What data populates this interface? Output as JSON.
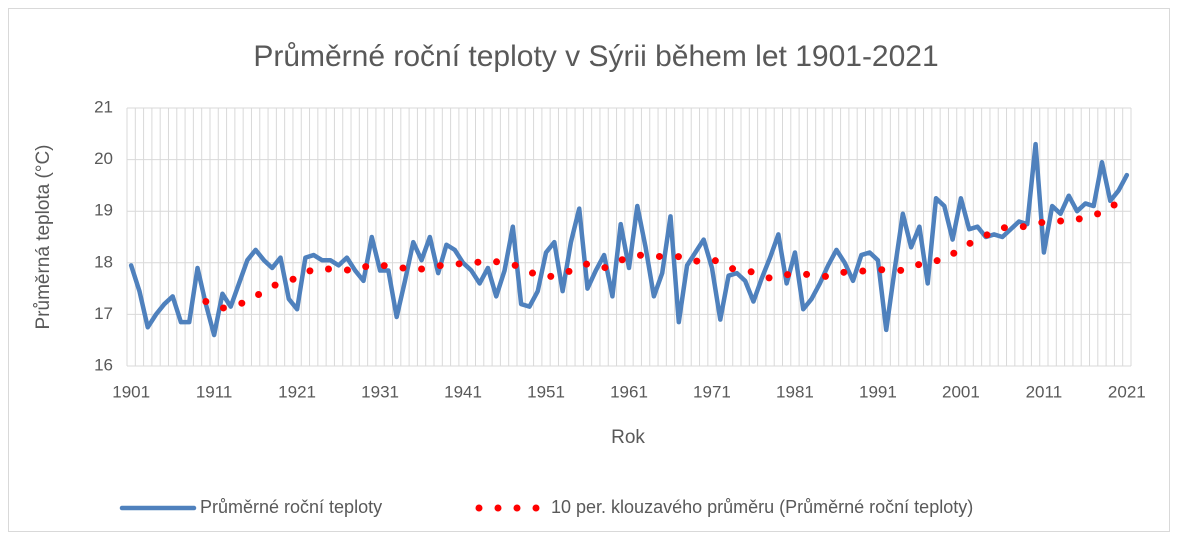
{
  "chart_data": {
    "type": "line",
    "title": "Průměrné roční teploty v Sýrii během let 1901-2021",
    "xlabel": "Rok",
    "ylabel": "Průměrná teplota (°C)",
    "x": [
      1901,
      1902,
      1903,
      1904,
      1905,
      1906,
      1907,
      1908,
      1909,
      1910,
      1911,
      1912,
      1913,
      1914,
      1915,
      1916,
      1917,
      1918,
      1919,
      1920,
      1921,
      1922,
      1923,
      1924,
      1925,
      1926,
      1927,
      1928,
      1929,
      1930,
      1931,
      1932,
      1933,
      1934,
      1935,
      1936,
      1937,
      1938,
      1939,
      1940,
      1941,
      1942,
      1943,
      1944,
      1945,
      1946,
      1947,
      1948,
      1949,
      1950,
      1951,
      1952,
      1953,
      1954,
      1955,
      1956,
      1957,
      1958,
      1959,
      1960,
      1961,
      1962,
      1963,
      1964,
      1965,
      1966,
      1967,
      1968,
      1969,
      1970,
      1971,
      1972,
      1973,
      1974,
      1975,
      1976,
      1977,
      1978,
      1979,
      1980,
      1981,
      1982,
      1983,
      1984,
      1985,
      1986,
      1987,
      1988,
      1989,
      1990,
      1991,
      1992,
      1993,
      1994,
      1995,
      1996,
      1997,
      1998,
      1999,
      2000,
      2001,
      2002,
      2003,
      2004,
      2005,
      2006,
      2007,
      2008,
      2009,
      2010,
      2011,
      2012,
      2013,
      2014,
      2015,
      2016,
      2017,
      2018,
      2019,
      2020,
      2021
    ],
    "series": [
      {
        "name": "Průměrné roční teploty",
        "color": "#4f81bd",
        "style": "solid",
        "values": [
          17.95,
          17.45,
          16.75,
          17.0,
          17.2,
          17.35,
          16.85,
          16.85,
          17.9,
          17.2,
          16.6,
          17.4,
          17.15,
          17.6,
          18.05,
          18.25,
          18.05,
          17.9,
          18.1,
          17.3,
          17.1,
          18.1,
          18.15,
          18.05,
          18.05,
          17.95,
          18.1,
          17.85,
          17.65,
          18.5,
          17.85,
          17.85,
          16.95,
          17.65,
          18.4,
          18.05,
          18.5,
          17.8,
          18.35,
          18.25,
          18.0,
          17.85,
          17.6,
          17.9,
          17.35,
          17.85,
          18.7,
          17.2,
          17.15,
          17.45,
          18.2,
          18.4,
          17.45,
          18.4,
          19.05,
          17.5,
          17.85,
          18.15,
          17.35,
          18.75,
          17.9,
          19.1,
          18.3,
          17.35,
          17.8,
          18.9,
          16.85,
          17.95,
          18.2,
          18.45,
          17.9,
          16.9,
          17.75,
          17.8,
          17.65,
          17.25,
          17.7,
          18.1,
          18.55,
          17.6,
          18.2,
          17.1,
          17.3,
          17.6,
          17.95,
          18.25,
          18.0,
          17.65,
          18.15,
          18.2,
          18.05,
          16.7,
          17.85,
          18.95,
          18.3,
          18.7,
          17.6,
          19.25,
          19.1,
          18.45,
          19.25,
          18.65,
          18.7,
          18.5,
          18.55,
          18.5,
          18.65,
          18.8,
          18.75,
          20.3,
          18.2,
          19.1,
          18.95,
          19.3,
          19.0,
          19.15,
          19.1,
          19.95,
          19.2,
          19.4,
          19.7
        ]
      },
      {
        "name": "10 per. klouzavého průměru (Průměrné roční teploty)",
        "color": "#ff0000",
        "style": "dotted",
        "values": [
          null,
          null,
          null,
          null,
          null,
          null,
          null,
          null,
          null,
          17.25,
          17.2,
          17.12,
          17.16,
          17.2,
          17.25,
          17.35,
          17.45,
          17.54,
          17.62,
          17.66,
          17.7,
          17.8,
          17.88,
          17.88,
          17.88,
          17.88,
          17.86,
          17.85,
          17.91,
          17.97,
          17.95,
          17.94,
          17.93,
          17.89,
          17.85,
          17.88,
          17.92,
          17.94,
          17.96,
          17.98,
          17.98,
          17.98,
          18.02,
          18.05,
          18.02,
          18.0,
          17.97,
          17.9,
          17.82,
          17.77,
          17.72,
          17.75,
          17.78,
          17.85,
          17.92,
          17.98,
          17.94,
          17.9,
          17.98,
          18.05,
          18.1,
          18.15,
          18.14,
          18.13,
          18.12,
          18.12,
          18.12,
          18.08,
          18.03,
          18.05,
          18.07,
          18.0,
          17.92,
          17.85,
          17.84,
          17.82,
          17.76,
          17.7,
          17.74,
          17.77,
          17.78,
          17.78,
          17.77,
          17.75,
          17.73,
          17.78,
          17.82,
          17.83,
          17.84,
          17.85,
          17.86,
          17.87,
          17.86,
          17.85,
          17.91,
          17.97,
          18.02,
          18.04,
          18.05,
          18.17,
          18.28,
          18.37,
          18.45,
          18.53,
          18.6,
          18.68,
          18.68,
          18.68,
          18.72,
          18.75,
          18.79,
          18.82,
          18.81,
          18.8,
          18.84,
          18.88,
          18.92,
          18.98,
          19.05,
          19.2,
          19.25
        ]
      }
    ],
    "xlim": [
      1900.5,
      2021.5
    ],
    "xticks": [
      1901,
      1911,
      1921,
      1931,
      1941,
      1951,
      1961,
      1971,
      1981,
      1991,
      2001,
      2011,
      2021
    ],
    "ylim": [
      16,
      21
    ],
    "yticks": [
      16,
      17,
      18,
      19,
      20,
      21
    ],
    "grid": true,
    "legend": "bottom"
  }
}
